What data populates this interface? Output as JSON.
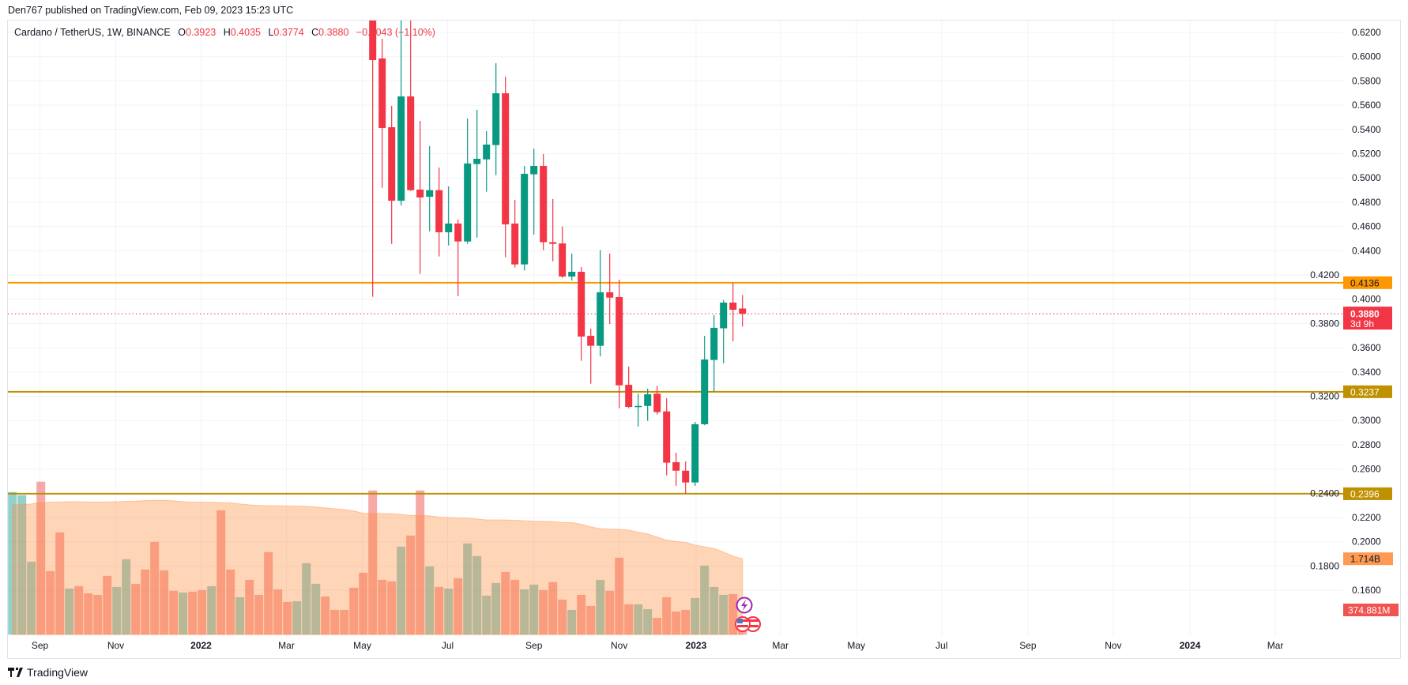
{
  "header": {
    "publisher": "Den767 published on TradingView.com, Feb 09, 2023 15:23 UTC"
  },
  "legend": {
    "symbol": "Cardano / TetherUS, 1W, BINANCE",
    "o_label": "O",
    "o": "0.3923",
    "h_label": "H",
    "h": "0.4035",
    "l_label": "L",
    "l": "0.3774",
    "c_label": "C",
    "c": "0.3880",
    "change": "−0.0043 (−1.10%)"
  },
  "footer": {
    "brand": "TradingView"
  },
  "colors": {
    "up": "#089981",
    "down": "#f23645",
    "level_orange": "#ff9800",
    "level_gold": "#bf9000",
    "ma": "#ff8834"
  },
  "chart_data": {
    "type": "candlestick",
    "interval": "1W",
    "ylim": [
      0.16,
      0.62
    ],
    "y_ticks": [
      "0.6200",
      "0.6000",
      "0.5800",
      "0.5600",
      "0.5400",
      "0.5200",
      "0.5000",
      "0.4800",
      "0.4600",
      "0.4400",
      "0.4200",
      "0.4000",
      "0.3800",
      "0.3600",
      "0.3400",
      "0.3200",
      "0.3000",
      "0.2800",
      "0.2600",
      "0.2400",
      "0.2200",
      "0.2000",
      "0.1800",
      "0.1600"
    ],
    "x_ticks": [
      {
        "label": "Sep",
        "bar": 2.9,
        "bold": false
      },
      {
        "label": "Nov",
        "bar": 10.9,
        "bold": false
      },
      {
        "label": "2022",
        "bar": 19.9,
        "bold": true
      },
      {
        "label": "Mar",
        "bar": 28.9,
        "bold": false
      },
      {
        "label": "May",
        "bar": 36.9,
        "bold": false
      },
      {
        "label": "Jul",
        "bar": 45.9,
        "bold": false
      },
      {
        "label": "Sep",
        "bar": 55,
        "bold": false
      },
      {
        "label": "Nov",
        "bar": 64,
        "bold": false
      },
      {
        "label": "2023",
        "bar": 72.1,
        "bold": true
      },
      {
        "label": "Mar",
        "bar": 81,
        "bold": false
      },
      {
        "label": "May",
        "bar": 89,
        "bold": false
      },
      {
        "label": "Jul",
        "bar": 98,
        "bold": false
      },
      {
        "label": "Sep",
        "bar": 107.1,
        "bold": false
      },
      {
        "label": "Nov",
        "bar": 116.1,
        "bold": false
      },
      {
        "label": "2024",
        "bar": 124.2,
        "bold": true
      },
      {
        "label": "Mar",
        "bar": 133.2,
        "bold": false
      }
    ],
    "candles_start_bar": 38,
    "candles": [
      [
        0.6495,
        0.66,
        0.402,
        0.5972
      ],
      [
        0.5985,
        0.6148,
        0.4919,
        0.5412
      ],
      [
        0.5418,
        0.5594,
        0.4456,
        0.4812
      ],
      [
        0.4812,
        0.66,
        0.4773,
        0.5672
      ],
      [
        0.5672,
        0.66,
        0.4893,
        0.4899
      ],
      [
        0.4904,
        0.547,
        0.4209,
        0.4839
      ],
      [
        0.4845,
        0.5262,
        0.456,
        0.4899
      ],
      [
        0.4899,
        0.5086,
        0.4352,
        0.4552
      ],
      [
        0.4552,
        0.493,
        0.4443,
        0.4624
      ],
      [
        0.4624,
        0.4658,
        0.4026,
        0.4476
      ],
      [
        0.4476,
        0.549,
        0.4456,
        0.5119
      ],
      [
        0.5114,
        0.5562,
        0.4508,
        0.5158
      ],
      [
        0.5153,
        0.5386,
        0.4886,
        0.5275
      ],
      [
        0.5271,
        0.5946,
        0.5023,
        0.5698
      ],
      [
        0.5698,
        0.5835,
        0.4346,
        0.4617
      ],
      [
        0.4624,
        0.4819,
        0.4261,
        0.4287
      ],
      [
        0.4287,
        0.5099,
        0.4237,
        0.5034
      ],
      [
        0.503,
        0.5242,
        0.4534,
        0.5099
      ],
      [
        0.5099,
        0.5197,
        0.4404,
        0.447
      ],
      [
        0.447,
        0.4826,
        0.4313,
        0.4456
      ],
      [
        0.446,
        0.46,
        0.4176,
        0.4187
      ],
      [
        0.4187,
        0.4376,
        0.4154,
        0.4226
      ],
      [
        0.4226,
        0.4265,
        0.3492,
        0.3692
      ],
      [
        0.3698,
        0.3757,
        0.3303,
        0.3616
      ],
      [
        0.3616,
        0.4404,
        0.3529,
        0.4057
      ],
      [
        0.4057,
        0.4376,
        0.3796,
        0.4013
      ],
      [
        0.4018,
        0.4161,
        0.3101,
        0.329
      ],
      [
        0.3294,
        0.3444,
        0.3101,
        0.3112
      ],
      [
        0.3114,
        0.3221,
        0.2951,
        0.312
      ],
      [
        0.312,
        0.3262,
        0.2997,
        0.3216
      ],
      [
        0.3221,
        0.3286,
        0.3049,
        0.3069
      ],
      [
        0.3075,
        0.3184,
        0.2547,
        0.2652
      ],
      [
        0.2656,
        0.2735,
        0.2461,
        0.2586
      ],
      [
        0.2586,
        0.2663,
        0.2395,
        0.2489
      ],
      [
        0.2489,
        0.2988,
        0.2461,
        0.2969
      ],
      [
        0.2969,
        0.3698,
        0.2961,
        0.3503
      ],
      [
        0.3499,
        0.3868,
        0.3238,
        0.3764
      ],
      [
        0.376,
        0.3994,
        0.347,
        0.3972
      ],
      [
        0.3972,
        0.4136,
        0.3654,
        0.3913
      ],
      [
        0.3923,
        0.4035,
        0.3774,
        0.388
      ]
    ],
    "volume_unit": "M",
    "volume": [
      {
        "v": 3230,
        "up": true
      },
      {
        "v": 3158,
        "up": true
      },
      {
        "v": 1654,
        "up": true
      },
      {
        "v": 3463,
        "up": false
      },
      {
        "v": 1439,
        "up": false
      },
      {
        "v": 2316,
        "up": false
      },
      {
        "v": 1045,
        "up": true
      },
      {
        "v": 1098,
        "up": false
      },
      {
        "v": 937,
        "up": false
      },
      {
        "v": 901,
        "up": false
      },
      {
        "v": 1331,
        "up": false
      },
      {
        "v": 1081,
        "up": true
      },
      {
        "v": 1707,
        "up": true
      },
      {
        "v": 1152,
        "up": false
      },
      {
        "v": 1475,
        "up": false
      },
      {
        "v": 2101,
        "up": false
      },
      {
        "v": 1457,
        "up": false
      },
      {
        "v": 991,
        "up": false
      },
      {
        "v": 955,
        "up": true
      },
      {
        "v": 973,
        "up": false
      },
      {
        "v": 1009,
        "up": false
      },
      {
        "v": 1098,
        "up": true
      },
      {
        "v": 2818,
        "up": false
      },
      {
        "v": 1475,
        "up": false
      },
      {
        "v": 848,
        "up": true
      },
      {
        "v": 1242,
        "up": false
      },
      {
        "v": 901,
        "up": false
      },
      {
        "v": 1869,
        "up": false
      },
      {
        "v": 1027,
        "up": false
      },
      {
        "v": 740,
        "up": false
      },
      {
        "v": 758,
        "up": true
      },
      {
        "v": 1618,
        "up": true
      },
      {
        "v": 1152,
        "up": true
      },
      {
        "v": 866,
        "up": false
      },
      {
        "v": 561,
        "up": false
      },
      {
        "v": 561,
        "up": false
      },
      {
        "v": 1063,
        "up": false
      },
      {
        "v": 1403,
        "up": false
      },
      {
        "v": 3266,
        "up": false
      },
      {
        "v": 1242,
        "up": false
      },
      {
        "v": 1206,
        "up": false
      },
      {
        "v": 1994,
        "up": true
      },
      {
        "v": 2245,
        "up": false
      },
      {
        "v": 3266,
        "up": false
      },
      {
        "v": 1546,
        "up": true
      },
      {
        "v": 1081,
        "up": false
      },
      {
        "v": 1045,
        "up": true
      },
      {
        "v": 1278,
        "up": false
      },
      {
        "v": 2066,
        "up": true
      },
      {
        "v": 1779,
        "up": true
      },
      {
        "v": 884,
        "up": true
      },
      {
        "v": 1170,
        "up": true
      },
      {
        "v": 1421,
        "up": false
      },
      {
        "v": 1242,
        "up": false
      },
      {
        "v": 1027,
        "up": true
      },
      {
        "v": 1134,
        "up": true
      },
      {
        "v": 1009,
        "up": false
      },
      {
        "v": 1188,
        "up": false
      },
      {
        "v": 794,
        "up": false
      },
      {
        "v": 561,
        "up": true
      },
      {
        "v": 901,
        "up": false
      },
      {
        "v": 651,
        "up": false
      },
      {
        "v": 1242,
        "up": true
      },
      {
        "v": 991,
        "up": false
      },
      {
        "v": 1743,
        "up": false
      },
      {
        "v": 687,
        "up": false
      },
      {
        "v": 687,
        "up": true
      },
      {
        "v": 579,
        "up": true
      },
      {
        "v": 382,
        "up": false
      },
      {
        "v": 848,
        "up": false
      },
      {
        "v": 525,
        "up": false
      },
      {
        "v": 561,
        "up": false
      },
      {
        "v": 830,
        "up": true
      },
      {
        "v": 1564,
        "up": true
      },
      {
        "v": 1081,
        "up": true
      },
      {
        "v": 901,
        "up": true
      },
      {
        "v": 919,
        "up": false
      },
      {
        "v": 375,
        "up": false
      }
    ],
    "volume_ma": [
      2940,
      2950,
      2960,
      2990,
      3000,
      3005,
      3010,
      3010,
      3005,
      3000,
      3005,
      3010,
      3020,
      3025,
      3035,
      3040,
      3040,
      3030,
      3010,
      3000,
      3000,
      3000,
      2990,
      2985,
      2960,
      2940,
      2925,
      2920,
      2920,
      2915,
      2910,
      2905,
      2890,
      2870,
      2850,
      2835,
      2800,
      2750,
      2745,
      2745,
      2740,
      2720,
      2700,
      2700,
      2690,
      2660,
      2650,
      2640,
      2640,
      2620,
      2600,
      2600,
      2597,
      2590,
      2580,
      2570,
      2565,
      2560,
      2540,
      2537,
      2500,
      2440,
      2400,
      2390,
      2385,
      2370,
      2320,
      2280,
      2210,
      2140,
      2110,
      2090,
      2030,
      1990,
      1950,
      1870,
      1780,
      1719
    ],
    "levels": [
      {
        "price": 0.4136,
        "label": "0.4136",
        "color": "#ff9800",
        "text_color": "#131722"
      },
      {
        "price": 0.3237,
        "label": "0.3237",
        "color": "#bf9000",
        "text_color": "#ffffff"
      },
      {
        "price": 0.2396,
        "label": "0.2396",
        "color": "#bf9000",
        "text_color": "#ffffff"
      }
    ],
    "last_price": {
      "price": 0.388,
      "label": "0.3880",
      "countdown": "3d 9h"
    },
    "volume_ma_label": "1.714B",
    "volume_last_label": "374.881M"
  }
}
